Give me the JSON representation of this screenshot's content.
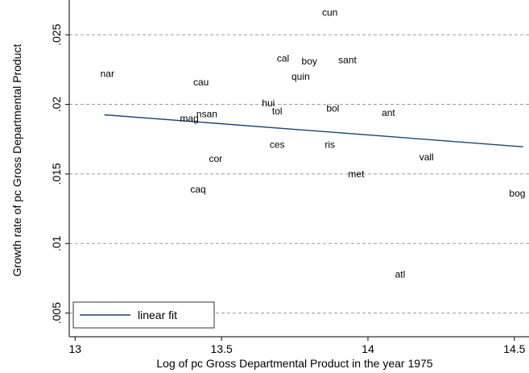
{
  "chart_data": {
    "type": "scatter",
    "title": "",
    "xlabel": "Log of pc Gross Departmental Product in the year 1975",
    "ylabel": "Growth rate of pc Gross Departmental Product",
    "xlim": [
      12.98,
      14.55
    ],
    "ylim": [
      0.0033,
      0.0275
    ],
    "x_ticks": [
      {
        "value": 13,
        "label": "13"
      },
      {
        "value": 13.5,
        "label": "13.5"
      },
      {
        "value": 14,
        "label": "14"
      },
      {
        "value": 14.5,
        "label": "14.5"
      }
    ],
    "y_ticks": [
      {
        "value": 0.005,
        "label": ".005"
      },
      {
        "value": 0.01,
        "label": ".01"
      },
      {
        "value": 0.015,
        "label": ".015"
      },
      {
        "value": 0.02,
        "label": ".02"
      },
      {
        "value": 0.025,
        "label": ".025"
      }
    ],
    "grid": "horizontal dashed",
    "legend": {
      "position": "bottom-left",
      "label": "linear fit"
    },
    "colors": {
      "fit_line": "#1a476f",
      "grid": "#9a9a9a",
      "axis": "#000000"
    },
    "points": [
      {
        "label": "cun",
        "x": 13.87,
        "y": 0.0266
      },
      {
        "label": "cal",
        "x": 13.71,
        "y": 0.0233
      },
      {
        "label": "boy",
        "x": 13.8,
        "y": 0.0231
      },
      {
        "label": "sant",
        "x": 13.93,
        "y": 0.0232
      },
      {
        "label": "nar",
        "x": 13.11,
        "y": 0.0222
      },
      {
        "label": "quin",
        "x": 13.77,
        "y": 0.022
      },
      {
        "label": "cau",
        "x": 13.43,
        "y": 0.0216
      },
      {
        "label": "hui",
        "x": 13.66,
        "y": 0.0201
      },
      {
        "label": "bol",
        "x": 13.88,
        "y": 0.0197
      },
      {
        "label": "tol",
        "x": 13.69,
        "y": 0.0195
      },
      {
        "label": "ant",
        "x": 14.07,
        "y": 0.0194
      },
      {
        "label": "nsan",
        "x": 13.45,
        "y": 0.0193
      },
      {
        "label": "mag",
        "x": 13.39,
        "y": 0.019
      },
      {
        "label": "ces",
        "x": 13.69,
        "y": 0.0171
      },
      {
        "label": "ris",
        "x": 13.87,
        "y": 0.0171
      },
      {
        "label": "vall",
        "x": 14.2,
        "y": 0.0162
      },
      {
        "label": "cor",
        "x": 13.48,
        "y": 0.0161
      },
      {
        "label": "met",
        "x": 13.96,
        "y": 0.015
      },
      {
        "label": "caq",
        "x": 13.42,
        "y": 0.0139
      },
      {
        "label": "bog",
        "x": 14.51,
        "y": 0.0136
      },
      {
        "label": "atl",
        "x": 14.11,
        "y": 0.0078
      }
    ],
    "fit_line": {
      "name": "linear fit",
      "x": [
        13.1,
        14.53
      ],
      "y": [
        0.01925,
        0.01695
      ]
    }
  }
}
